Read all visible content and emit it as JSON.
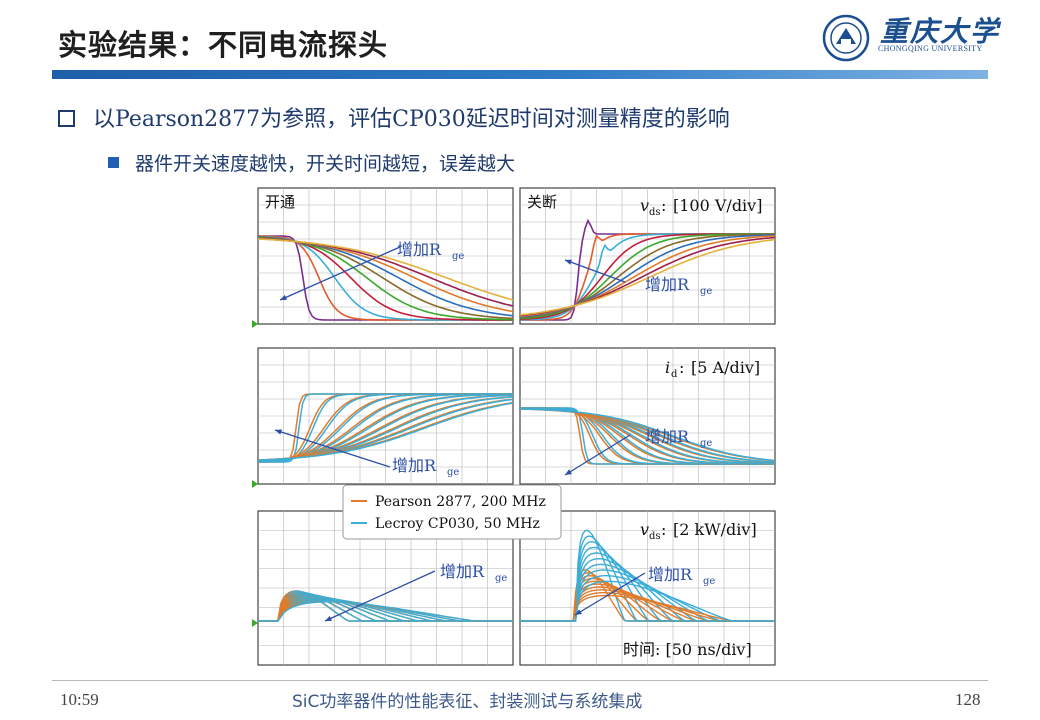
{
  "slide": {
    "title": "实验结果：不同电流探头",
    "bullet_main": "以Pearson2877为参照，评估CP030延迟时间对测量精度的影响",
    "bullet_sub": "器件开关速度越快，开关时间越短，误差越大"
  },
  "logo": {
    "name_cn": "重庆大学",
    "name_en": "CHONGQING UNIVERSITY",
    "icon": "university-seal-icon"
  },
  "footer": {
    "time": "10:59",
    "course": "SiC功率器件的性能表征、封装测试与系统集成",
    "page": "128"
  },
  "figure": {
    "labels": {
      "turn_on": "开通",
      "turn_off": "关断",
      "vds_scale": "[100 V/div]",
      "id_scale": "[5 A/div]",
      "p_scale": "[2 kW/div]",
      "time_scale": "时间: [50 ns/div]",
      "arrow": "增加R"
    },
    "legend": [
      "Pearson 2877, 200 MHz",
      "Lecroy CP030, 50 MHz"
    ],
    "colors": {
      "pearson": "#e07b2a",
      "lecroy": "#3aaed8",
      "grid": "#b6b6b6",
      "marker": "#3aa82a"
    }
  }
}
